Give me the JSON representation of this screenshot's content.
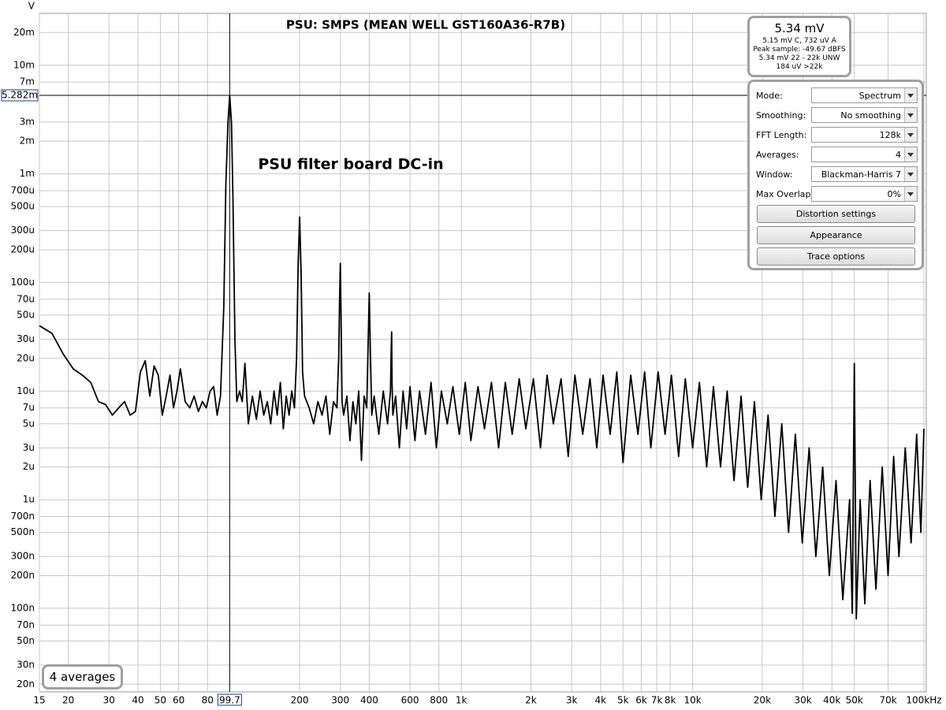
{
  "chart_data": {
    "type": "line",
    "title": "PSU: SMPS (MEAN WELL GST160A36-R7B)",
    "annotation": "PSU filter board DC-in",
    "y_unit": "V",
    "color": "#000000",
    "x_log": true,
    "y_log": true,
    "grid": true,
    "xlim": [
      15,
      100000
    ],
    "ylim": [
      1.7e-08,
      0.03
    ],
    "xticks": [
      15,
      20,
      30,
      40,
      50,
      60,
      80,
      200,
      300,
      400,
      600,
      800,
      {
        "value": 1000,
        "label": "1k"
      },
      {
        "value": 2000,
        "label": "2k"
      },
      {
        "value": 3000,
        "label": "3k"
      },
      {
        "value": 4000,
        "label": "4k"
      },
      {
        "value": 5000,
        "label": "5k"
      },
      {
        "value": 6000,
        "label": "6k"
      },
      {
        "value": 7000,
        "label": "7k"
      },
      {
        "value": 8000,
        "label": "8k"
      },
      {
        "value": 10000,
        "label": "10k"
      },
      {
        "value": 20000,
        "label": "20k"
      },
      {
        "value": 30000,
        "label": "30k"
      },
      {
        "value": 40000,
        "label": "40k"
      },
      {
        "value": 50000,
        "label": "50k"
      },
      {
        "value": 70000,
        "label": "70k"
      },
      {
        "value": 100000,
        "label": "100kHz"
      }
    ],
    "yticks": [
      {
        "value": 0.02,
        "label": "20m"
      },
      {
        "value": 0.01,
        "label": "10m"
      },
      {
        "value": 0.007,
        "label": "7m"
      },
      {
        "value": 0.003,
        "label": "3m"
      },
      {
        "value": 0.002,
        "label": "2m"
      },
      {
        "value": 0.001,
        "label": "1m"
      },
      {
        "value": 0.0007,
        "label": "700u"
      },
      {
        "value": 0.0005,
        "label": "500u"
      },
      {
        "value": 0.0003,
        "label": "300u"
      },
      {
        "value": 0.0002,
        "label": "200u"
      },
      {
        "value": 0.0001,
        "label": "100u"
      },
      {
        "value": 7e-05,
        "label": "70u"
      },
      {
        "value": 5e-05,
        "label": "50u"
      },
      {
        "value": 3e-05,
        "label": "30u"
      },
      {
        "value": 2e-05,
        "label": "20u"
      },
      {
        "value": 1e-05,
        "label": "10u"
      },
      {
        "value": 7e-06,
        "label": "7u"
      },
      {
        "value": 5e-06,
        "label": "5u"
      },
      {
        "value": 3e-06,
        "label": "3u"
      },
      {
        "value": 2e-06,
        "label": "2u"
      },
      {
        "value": 1e-06,
        "label": "1u"
      },
      {
        "value": 7e-07,
        "label": "700n"
      },
      {
        "value": 5e-07,
        "label": "500n"
      },
      {
        "value": 3e-07,
        "label": "300n"
      },
      {
        "value": 2e-07,
        "label": "200n"
      },
      {
        "value": 1e-07,
        "label": "100n"
      },
      {
        "value": 7e-08,
        "label": "70n"
      },
      {
        "value": 5e-08,
        "label": "50n"
      },
      {
        "value": 3e-08,
        "label": "30n"
      },
      {
        "value": 2e-08,
        "label": "20n"
      }
    ],
    "cursor": {
      "x": 99.7,
      "y": {
        "value": 0.005282,
        "label": "5.282m"
      }
    },
    "x": [
      15,
      17,
      19,
      21,
      23,
      25,
      27,
      29,
      31,
      33,
      35,
      37,
      39,
      41,
      43,
      45,
      47,
      49,
      51,
      53,
      55,
      57,
      59,
      61,
      64,
      67,
      70,
      73,
      76,
      79,
      82,
      85,
      88,
      91,
      94,
      96,
      98,
      99.7,
      101.5,
      103,
      105,
      107,
      110,
      113,
      116,
      120,
      125,
      130,
      135,
      140,
      145,
      150,
      155,
      160,
      165,
      170,
      175,
      180,
      185,
      190,
      194,
      197,
      200,
      203,
      206,
      210,
      220,
      230,
      240,
      250,
      260,
      270,
      280,
      290,
      295,
      298,
      300,
      302,
      305,
      310,
      320,
      330,
      340,
      350,
      360,
      370,
      380,
      390,
      396,
      400,
      404,
      410,
      420,
      440,
      460,
      480,
      494,
      498,
      500,
      502,
      506,
      520,
      540,
      560,
      580,
      600,
      630,
      660,
      700,
      740,
      780,
      820,
      870,
      920,
      980,
      1040,
      1100,
      1180,
      1260,
      1350,
      1450,
      1550,
      1660,
      1780,
      1900,
      2050,
      2200,
      2350,
      2500,
      2700,
      2900,
      3100,
      3350,
      3600,
      3850,
      4100,
      4400,
      4700,
      5000,
      5400,
      5800,
      6200,
      6600,
      7100,
      7600,
      8100,
      8700,
      9300,
      10000,
      10700,
      11500,
      12300,
      13200,
      14100,
      15100,
      16200,
      17300,
      18500,
      19800,
      21200,
      22700,
      24300,
      26000,
      27800,
      29800,
      31900,
      34100,
      36500,
      39000,
      41700,
      44600,
      47700,
      49000,
      50000,
      51000,
      53000,
      55500,
      58500,
      62000,
      66000,
      70000,
      74000,
      78000,
      83000,
      88000,
      93000,
      97000,
      100000
    ],
    "values": [
      4e-05,
      3.4e-05,
      2.2e-05,
      1.6e-05,
      1.4e-05,
      1.2e-05,
      8e-06,
      7.5e-06,
      6e-06,
      7e-06,
      8e-06,
      6e-06,
      6.5e-06,
      1.5e-05,
      1.9e-05,
      9e-06,
      1.7e-05,
      1.4e-05,
      6e-06,
      9e-06,
      1.4e-05,
      7e-06,
      1e-05,
      1.6e-05,
      8e-06,
      7e-06,
      9e-06,
      6.5e-06,
      8e-06,
      7e-06,
      1e-05,
      1.1e-05,
      6e-06,
      9e-06,
      6e-05,
      0.0008,
      0.003,
      0.005282,
      0.003,
      0.0006,
      3e-05,
      8e-06,
      1e-05,
      8e-06,
      1.8e-05,
      5e-06,
      9e-06,
      5.5e-06,
      1e-05,
      6e-06,
      8e-06,
      5e-06,
      1e-05,
      6e-06,
      1.2e-05,
      4.5e-06,
      9e-06,
      6e-06,
      1e-05,
      7e-06,
      2e-05,
      0.00015,
      0.0004,
      0.00012,
      1.5e-05,
      9e-06,
      7e-06,
      5e-06,
      8e-06,
      6e-06,
      9e-06,
      4e-06,
      8e-06,
      7e-06,
      2e-05,
      8e-05,
      0.00015,
      5e-05,
      8e-06,
      6e-06,
      9e-06,
      3.5e-06,
      8e-06,
      5e-06,
      1e-05,
      2.3e-06,
      9e-06,
      7e-06,
      3e-05,
      8e-05,
      2.5e-05,
      6e-06,
      9e-06,
      4e-06,
      1e-05,
      5e-06,
      1e-05,
      2.5e-05,
      3.5e-05,
      1.2e-05,
      6e-06,
      9e-06,
      3e-06,
      1e-05,
      4.5e-06,
      1.1e-05,
      3.5e-06,
      1e-05,
      4e-06,
      1.2e-05,
      3e-06,
      1e-05,
      5e-06,
      1.1e-05,
      4e-06,
      1.2e-05,
      3.5e-06,
      1.1e-05,
      4.5e-06,
      1.2e-05,
      3e-06,
      1.2e-05,
      4e-06,
      1.3e-05,
      4.5e-06,
      1.3e-05,
      3e-06,
      1.4e-05,
      5e-06,
      1.3e-05,
      2.5e-06,
      1.4e-05,
      4e-06,
      1.3e-05,
      3e-06,
      1.4e-05,
      4e-06,
      1.5e-05,
      2.2e-06,
      1.4e-05,
      4e-06,
      1.5e-05,
      3e-06,
      1.5e-05,
      4e-06,
      1.4e-05,
      2.5e-06,
      1.3e-05,
      3e-06,
      1.2e-05,
      2e-06,
      1.1e-05,
      2e-06,
      1e-05,
      1.5e-06,
      9e-06,
      1.3e-06,
      8e-06,
      1e-06,
      6e-06,
      7e-07,
      5e-06,
      5e-07,
      4e-06,
      4e-07,
      3e-06,
      3e-07,
      2e-06,
      2e-07,
      1.5e-06,
      1.2e-07,
      1e-06,
      9e-08,
      1.8e-05,
      8e-08,
      1e-06,
      1.1e-07,
      1.5e-06,
      1.5e-07,
      2e-06,
      2e-07,
      2.5e-06,
      3e-07,
      3e-06,
      4e-07,
      4e-06,
      5e-07,
      4.5e-06
    ]
  },
  "averages_badge": "4 averages",
  "readout": {
    "main": "5.34 mV",
    "lines": [
      "5.15 mV C, 732 uV A",
      "Peak sample: -49.67 dBFS",
      "5.34 mV 22 - 22k UNW",
      "184 uV >22k"
    ]
  },
  "controls": {
    "fields": [
      {
        "label": "Mode:",
        "value": "Spectrum"
      },
      {
        "label": "Smoothing:",
        "value": "No  smoothing"
      },
      {
        "label": "FFT Length:",
        "value": "128k"
      },
      {
        "label": "Averages:",
        "value": "4"
      },
      {
        "label": "Window:",
        "value": "Blackman-Harris 7"
      },
      {
        "label": "Max Overlap:",
        "value": "0%"
      }
    ],
    "buttons": [
      "Distortion settings",
      "Appearance",
      "Trace options"
    ]
  }
}
